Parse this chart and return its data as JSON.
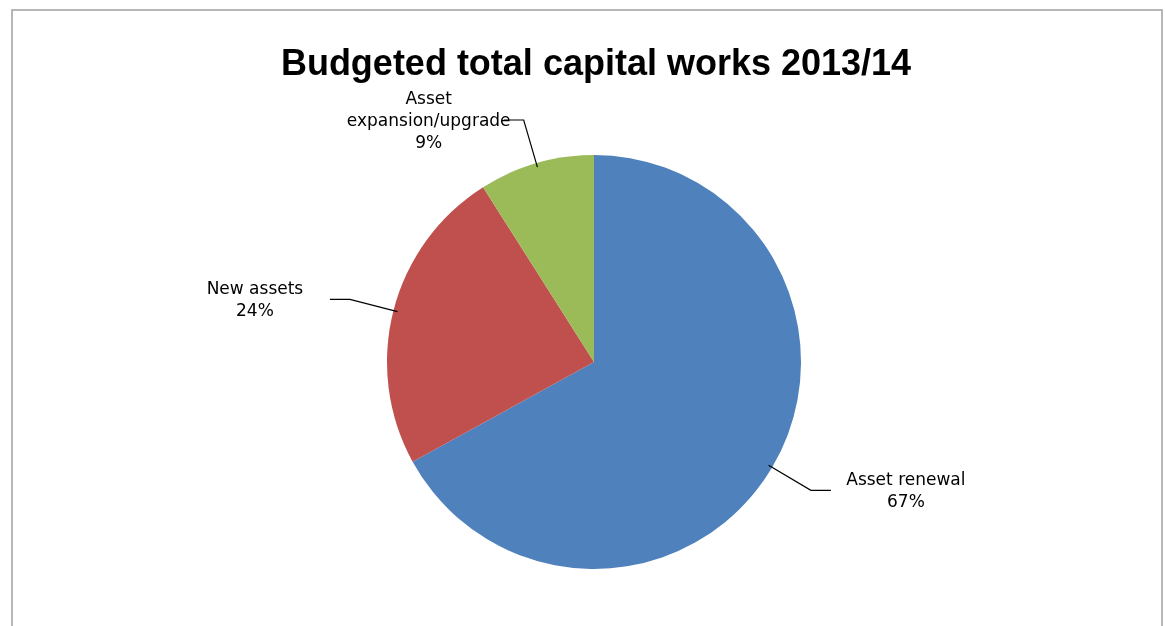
{
  "chart_data": {
    "type": "pie",
    "title": "Budgeted total capital works 2013/14",
    "categories": [
      "Asset renewal",
      "New assets",
      "Asset expansion/upgrade"
    ],
    "values": [
      67,
      24,
      9
    ],
    "value_labels": [
      "67%",
      "24%",
      "9%"
    ],
    "colors": [
      "#4f81bd",
      "#c0504d",
      "#9bbb59"
    ],
    "legend": false
  }
}
